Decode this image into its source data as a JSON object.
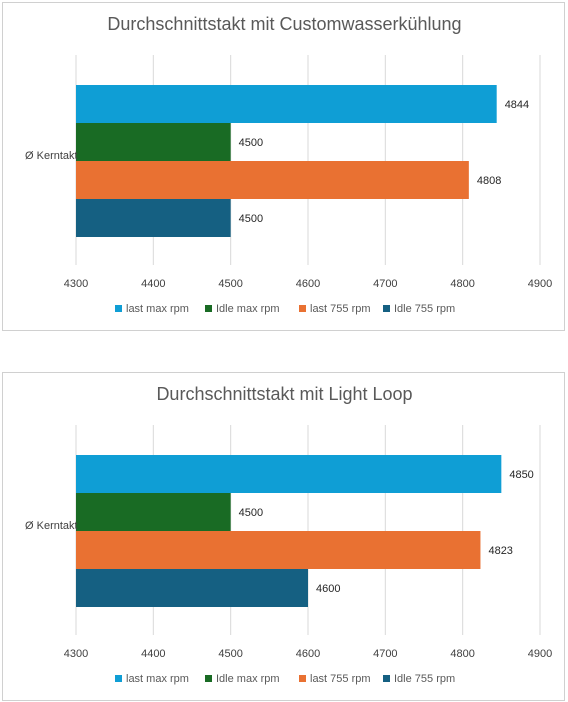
{
  "chart_data": [
    {
      "type": "bar",
      "orientation": "horizontal",
      "title": "Durchschnittstakt mit Customwasserkühlung",
      "categories": [
        "Ø Kerntakt"
      ],
      "xlim": [
        4300,
        4900
      ],
      "ticks": [
        4300,
        4400,
        4500,
        4600,
        4700,
        4800,
        4900
      ],
      "grid": true,
      "legend_position": "bottom",
      "series": [
        {
          "name": "last max rpm",
          "values": [
            4844
          ],
          "color": "#0f9ed5"
        },
        {
          "name": "Idle max rpm",
          "values": [
            4500
          ],
          "color": "#196b24"
        },
        {
          "name": "last 755 rpm",
          "values": [
            4808
          ],
          "color": "#e97132"
        },
        {
          "name": "Idle 755 rpm",
          "values": [
            4500
          ],
          "color": "#156082"
        }
      ]
    },
    {
      "type": "bar",
      "orientation": "horizontal",
      "title": "Durchschnittstakt mit Light Loop",
      "categories": [
        "Ø Kerntakt"
      ],
      "xlim": [
        4300,
        4900
      ],
      "ticks": [
        4300,
        4400,
        4500,
        4600,
        4700,
        4800,
        4900
      ],
      "grid": true,
      "legend_position": "bottom",
      "series": [
        {
          "name": "last max rpm",
          "values": [
            4850
          ],
          "color": "#0f9ed5"
        },
        {
          "name": "Idle max rpm",
          "values": [
            4500
          ],
          "color": "#196b24"
        },
        {
          "name": "last 755 rpm",
          "values": [
            4823
          ],
          "color": "#e97132"
        },
        {
          "name": "Idle 755 rpm",
          "values": [
            4600
          ],
          "color": "#156082"
        }
      ]
    }
  ]
}
